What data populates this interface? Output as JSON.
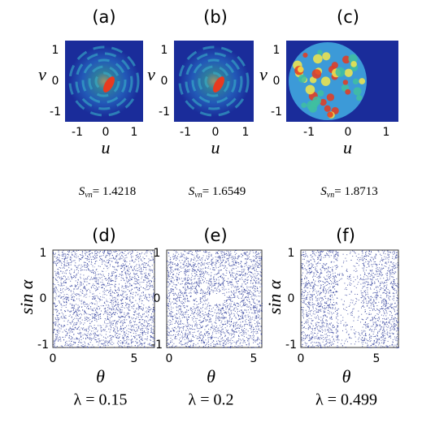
{
  "top_panels": [
    {
      "label": "(a)",
      "xlabel": "u",
      "ylabel": "v",
      "xticks": [
        "-1",
        "0",
        "1"
      ],
      "yticks": [
        "1",
        "0",
        "-1"
      ],
      "caption": {
        "symbol": "S",
        "sub": "vn",
        "value": "= 1.4218"
      }
    },
    {
      "label": "(b)",
      "xlabel": "u",
      "ylabel": "v",
      "xticks": [
        "-1",
        "0",
        "1"
      ],
      "yticks": [
        "1",
        "0",
        "-1"
      ],
      "caption": {
        "symbol": "S",
        "sub": "vn",
        "value": "= 1.6549"
      }
    },
    {
      "label": "(c)",
      "xlabel": "u",
      "ylabel": "v",
      "xticks": [
        "-1",
        "0",
        "1"
      ],
      "yticks": [
        "1",
        "0",
        "-1"
      ],
      "caption": {
        "symbol": "S",
        "sub": "vn",
        "value": "= 1.8713"
      }
    }
  ],
  "bottom_panels": [
    {
      "label": "(d)",
      "xlabel": "θ",
      "ylabel": "sin α",
      "xticks": [
        "0",
        "5"
      ],
      "yticks": [
        "1",
        "0",
        "-1"
      ],
      "caption": "λ = 0.15"
    },
    {
      "label": "(e)",
      "xlabel": "θ",
      "ylabel": "",
      "xticks": [
        "0",
        "5"
      ],
      "yticks": [
        "1",
        "0",
        "-1"
      ],
      "caption": "λ = 0.2"
    },
    {
      "label": "(f)",
      "xlabel": "θ",
      "ylabel": "sin α",
      "xticks": [
        "0",
        "5"
      ],
      "yticks": [
        "1",
        "0",
        "-1"
      ],
      "caption": "λ = 0.499"
    }
  ]
}
